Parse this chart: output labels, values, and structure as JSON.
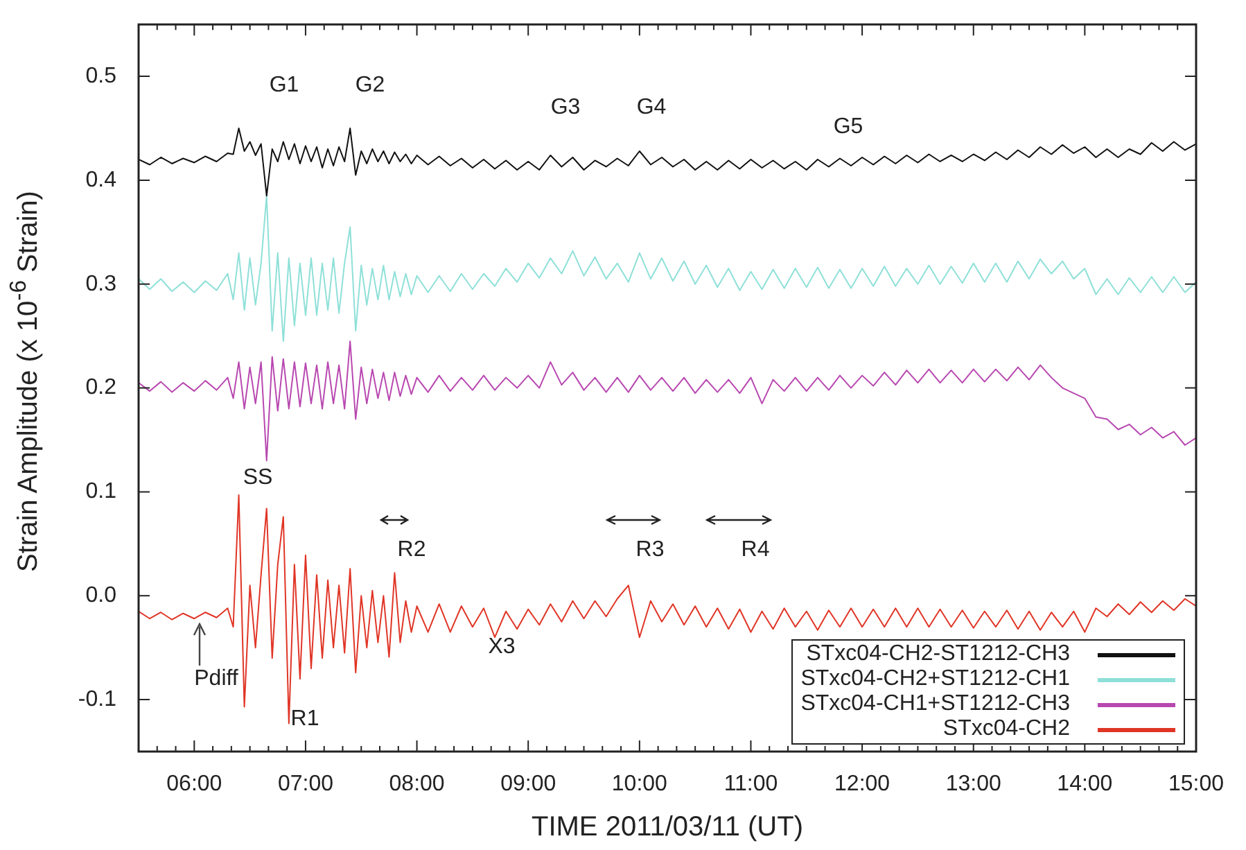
{
  "chart_data": {
    "type": "line",
    "xlabel": "TIME 2011/03/11 (UT)",
    "ylabel": "Strain Amplitude (x 10$^{-6}$ Strain)",
    "xlim": [
      5.5,
      15
    ],
    "ylim": [
      -0.15,
      0.55
    ],
    "xticks": [
      {
        "value": 5.5,
        "label": null
      },
      {
        "value": 5.6667,
        "label": null
      },
      {
        "value": 5.8333,
        "label": null
      },
      {
        "value": 6,
        "label": "06:00"
      },
      {
        "value": 6.1667,
        "label": null
      },
      {
        "value": 6.3333,
        "label": null
      },
      {
        "value": 6.5,
        "label": null
      },
      {
        "value": 6.6667,
        "label": null
      },
      {
        "value": 6.8333,
        "label": null
      },
      {
        "value": 7,
        "label": "07:00"
      },
      {
        "value": 7.1667,
        "label": null
      },
      {
        "value": 7.3333,
        "label": null
      },
      {
        "value": 7.5,
        "label": null
      },
      {
        "value": 7.6667,
        "label": null
      },
      {
        "value": 7.8333,
        "label": null
      },
      {
        "value": 8,
        "label": "08:00"
      },
      {
        "value": 8.1667,
        "label": null
      },
      {
        "value": 8.3333,
        "label": null
      },
      {
        "value": 8.5,
        "label": null
      },
      {
        "value": 8.6667,
        "label": null
      },
      {
        "value": 8.8333,
        "label": null
      },
      {
        "value": 9,
        "label": "09:00"
      },
      {
        "value": 9.1667,
        "label": null
      },
      {
        "value": 9.3333,
        "label": null
      },
      {
        "value": 9.5,
        "label": null
      },
      {
        "value": 9.6667,
        "label": null
      },
      {
        "value": 9.8333,
        "label": null
      },
      {
        "value": 10,
        "label": "10:00"
      },
      {
        "value": 10.1667,
        "label": null
      },
      {
        "value": 10.3333,
        "label": null
      },
      {
        "value": 10.5,
        "label": null
      },
      {
        "value": 10.6667,
        "label": null
      },
      {
        "value": 10.8333,
        "label": null
      },
      {
        "value": 11,
        "label": "11:00"
      },
      {
        "value": 11.1667,
        "label": null
      },
      {
        "value": 11.3333,
        "label": null
      },
      {
        "value": 11.5,
        "label": null
      },
      {
        "value": 11.6667,
        "label": null
      },
      {
        "value": 11.8333,
        "label": null
      },
      {
        "value": 12,
        "label": "12:00"
      },
      {
        "value": 12.1667,
        "label": null
      },
      {
        "value": 12.3333,
        "label": null
      },
      {
        "value": 12.5,
        "label": null
      },
      {
        "value": 12.6667,
        "label": null
      },
      {
        "value": 12.8333,
        "label": null
      },
      {
        "value": 13,
        "label": "13:00"
      },
      {
        "value": 13.1667,
        "label": null
      },
      {
        "value": 13.3333,
        "label": null
      },
      {
        "value": 13.5,
        "label": null
      },
      {
        "value": 13.6667,
        "label": null
      },
      {
        "value": 13.8333,
        "label": null
      },
      {
        "value": 14,
        "label": "14:00"
      },
      {
        "value": 14.1667,
        "label": null
      },
      {
        "value": 14.3333,
        "label": null
      },
      {
        "value": 14.5,
        "label": null
      },
      {
        "value": 14.6667,
        "label": null
      },
      {
        "value": 14.8333,
        "label": null
      },
      {
        "value": 15,
        "label": "15:00"
      }
    ],
    "yticks": [
      -0.1,
      {
        "value": 0,
        "label": "0.0"
      },
      0.1,
      0.2,
      0.3,
      0.4,
      0.5
    ],
    "grid": false,
    "legend": "bottom right",
    "marker": "none",
    "line_style": "solid",
    "x": [
      5.5,
      5.6,
      5.7,
      5.8,
      5.9,
      6.0,
      6.1,
      6.2,
      6.3,
      6.35,
      6.4,
      6.45,
      6.5,
      6.55,
      6.6,
      6.65,
      6.7,
      6.75,
      6.8,
      6.85,
      6.9,
      6.95,
      7.0,
      7.05,
      7.1,
      7.15,
      7.2,
      7.25,
      7.3,
      7.35,
      7.4,
      7.45,
      7.5,
      7.55,
      7.6,
      7.65,
      7.7,
      7.75,
      7.8,
      7.85,
      7.9,
      7.95,
      8.0,
      8.1,
      8.2,
      8.3,
      8.4,
      8.5,
      8.6,
      8.7,
      8.8,
      8.9,
      9.0,
      9.1,
      9.2,
      9.3,
      9.4,
      9.5,
      9.6,
      9.7,
      9.8,
      9.9,
      10.0,
      10.1,
      10.2,
      10.3,
      10.4,
      10.5,
      10.6,
      10.7,
      10.8,
      10.9,
      11.0,
      11.1,
      11.2,
      11.3,
      11.4,
      11.5,
      11.6,
      11.7,
      11.8,
      11.9,
      12.0,
      12.1,
      12.2,
      12.3,
      12.4,
      12.5,
      12.6,
      12.7,
      12.8,
      12.9,
      13.0,
      13.1,
      13.2,
      13.3,
      13.4,
      13.5,
      13.6,
      13.7,
      13.8,
      13.9,
      14.0,
      14.1,
      14.2,
      14.3,
      14.4,
      14.5,
      14.6,
      14.7,
      14.8,
      14.9,
      15.0
    ],
    "series": [
      {
        "name": "STxc04-CH2-ST1212-CH3",
        "color": "#111111",
        "values": [
          0.42,
          0.415,
          0.422,
          0.416,
          0.421,
          0.417,
          0.423,
          0.418,
          0.426,
          0.425,
          0.45,
          0.428,
          0.437,
          0.424,
          0.435,
          0.385,
          0.43,
          0.418,
          0.437,
          0.42,
          0.435,
          0.416,
          0.433,
          0.418,
          0.432,
          0.412,
          0.43,
          0.414,
          0.432,
          0.418,
          0.45,
          0.405,
          0.428,
          0.416,
          0.43,
          0.418,
          0.428,
          0.416,
          0.427,
          0.418,
          0.425,
          0.416,
          0.424,
          0.415,
          0.423,
          0.414,
          0.421,
          0.412,
          0.42,
          0.411,
          0.419,
          0.41,
          0.418,
          0.41,
          0.424,
          0.413,
          0.422,
          0.41,
          0.419,
          0.413,
          0.421,
          0.414,
          0.428,
          0.415,
          0.422,
          0.413,
          0.42,
          0.41,
          0.418,
          0.41,
          0.419,
          0.411,
          0.42,
          0.412,
          0.419,
          0.411,
          0.418,
          0.41,
          0.42,
          0.413,
          0.421,
          0.414,
          0.422,
          0.415,
          0.423,
          0.416,
          0.424,
          0.417,
          0.425,
          0.418,
          0.424,
          0.418,
          0.425,
          0.419,
          0.427,
          0.42,
          0.429,
          0.422,
          0.432,
          0.425,
          0.434,
          0.426,
          0.432,
          0.422,
          0.43,
          0.422,
          0.43,
          0.425,
          0.436,
          0.428,
          0.437,
          0.429,
          0.435
        ]
      },
      {
        "name": "STxc04-CH2+ST1212-CH1",
        "color": "#8ee0d8",
        "values": [
          0.305,
          0.295,
          0.305,
          0.293,
          0.302,
          0.292,
          0.303,
          0.294,
          0.31,
          0.285,
          0.33,
          0.275,
          0.325,
          0.28,
          0.32,
          0.385,
          0.255,
          0.33,
          0.245,
          0.325,
          0.26,
          0.32,
          0.27,
          0.325,
          0.27,
          0.32,
          0.275,
          0.325,
          0.272,
          0.32,
          0.355,
          0.255,
          0.318,
          0.28,
          0.315,
          0.285,
          0.318,
          0.285,
          0.312,
          0.288,
          0.31,
          0.29,
          0.308,
          0.292,
          0.308,
          0.293,
          0.31,
          0.295,
          0.31,
          0.298,
          0.315,
          0.302,
          0.32,
          0.306,
          0.325,
          0.31,
          0.332,
          0.308,
          0.326,
          0.305,
          0.32,
          0.302,
          0.33,
          0.305,
          0.325,
          0.303,
          0.322,
          0.3,
          0.318,
          0.297,
          0.315,
          0.294,
          0.312,
          0.295,
          0.314,
          0.296,
          0.315,
          0.297,
          0.316,
          0.296,
          0.314,
          0.296,
          0.315,
          0.298,
          0.317,
          0.298,
          0.315,
          0.3,
          0.318,
          0.3,
          0.317,
          0.301,
          0.32,
          0.302,
          0.32,
          0.302,
          0.322,
          0.305,
          0.324,
          0.31,
          0.322,
          0.305,
          0.315,
          0.29,
          0.305,
          0.29,
          0.306,
          0.292,
          0.307,
          0.292,
          0.307,
          0.292,
          0.302
        ]
      },
      {
        "name": "STxc04-CH1+ST1212-CH3",
        "color": "#b848b0",
        "values": [
          0.205,
          0.197,
          0.206,
          0.196,
          0.205,
          0.197,
          0.207,
          0.198,
          0.21,
          0.19,
          0.225,
          0.18,
          0.22,
          0.185,
          0.225,
          0.13,
          0.23,
          0.178,
          0.228,
          0.18,
          0.225,
          0.182,
          0.224,
          0.185,
          0.222,
          0.18,
          0.225,
          0.185,
          0.222,
          0.18,
          0.245,
          0.17,
          0.22,
          0.185,
          0.218,
          0.19,
          0.215,
          0.188,
          0.215,
          0.192,
          0.212,
          0.194,
          0.21,
          0.196,
          0.212,
          0.197,
          0.21,
          0.198,
          0.212,
          0.198,
          0.21,
          0.2,
          0.212,
          0.2,
          0.225,
          0.203,
          0.215,
          0.198,
          0.21,
          0.196,
          0.21,
          0.196,
          0.212,
          0.198,
          0.21,
          0.197,
          0.21,
          0.195,
          0.208,
          0.196,
          0.208,
          0.195,
          0.21,
          0.185,
          0.208,
          0.197,
          0.21,
          0.197,
          0.21,
          0.198,
          0.212,
          0.2,
          0.212,
          0.202,
          0.215,
          0.203,
          0.217,
          0.205,
          0.218,
          0.205,
          0.217,
          0.205,
          0.218,
          0.206,
          0.218,
          0.207,
          0.22,
          0.208,
          0.222,
          0.21,
          0.2,
          0.195,
          0.19,
          0.172,
          0.17,
          0.16,
          0.165,
          0.155,
          0.162,
          0.152,
          0.158,
          0.145,
          0.152
        ]
      },
      {
        "name": "STxc04-CH2",
        "color": "#e03526",
        "values": [
          -0.015,
          -0.022,
          -0.016,
          -0.023,
          -0.017,
          -0.022,
          -0.016,
          -0.021,
          -0.012,
          -0.03,
          0.097,
          -0.107,
          0.01,
          -0.05,
          0.02,
          0.084,
          -0.06,
          0.03,
          0.076,
          -0.123,
          0.03,
          -0.08,
          0.039,
          -0.07,
          0.02,
          -0.06,
          0.015,
          -0.05,
          0.01,
          -0.055,
          0.026,
          -0.074,
          0.0,
          -0.05,
          0.005,
          -0.045,
          0.0,
          -0.059,
          0.022,
          -0.045,
          -0.005,
          -0.035,
          -0.01,
          -0.035,
          -0.008,
          -0.035,
          -0.01,
          -0.03,
          -0.012,
          -0.04,
          -0.015,
          -0.032,
          -0.013,
          -0.028,
          -0.008,
          -0.025,
          -0.005,
          -0.022,
          -0.005,
          -0.02,
          -0.003,
          0.01,
          -0.04,
          -0.005,
          -0.025,
          -0.008,
          -0.028,
          -0.01,
          -0.03,
          -0.012,
          -0.032,
          -0.013,
          -0.035,
          -0.015,
          -0.032,
          -0.012,
          -0.03,
          -0.015,
          -0.033,
          -0.014,
          -0.03,
          -0.012,
          -0.03,
          -0.013,
          -0.03,
          -0.012,
          -0.03,
          -0.012,
          -0.03,
          -0.013,
          -0.03,
          -0.014,
          -0.031,
          -0.015,
          -0.03,
          -0.014,
          -0.032,
          -0.015,
          -0.033,
          -0.016,
          -0.03,
          -0.015,
          -0.035,
          -0.012,
          -0.02,
          -0.008,
          -0.018,
          -0.006,
          -0.016,
          -0.005,
          -0.014,
          -0.003,
          -0.01
        ]
      }
    ],
    "annotations": [
      "G1",
      "G2",
      "G3",
      "G4",
      "G5",
      "SS",
      "R1",
      "R2",
      "R3",
      "R4",
      "X3",
      "Pdiff"
    ]
  }
}
